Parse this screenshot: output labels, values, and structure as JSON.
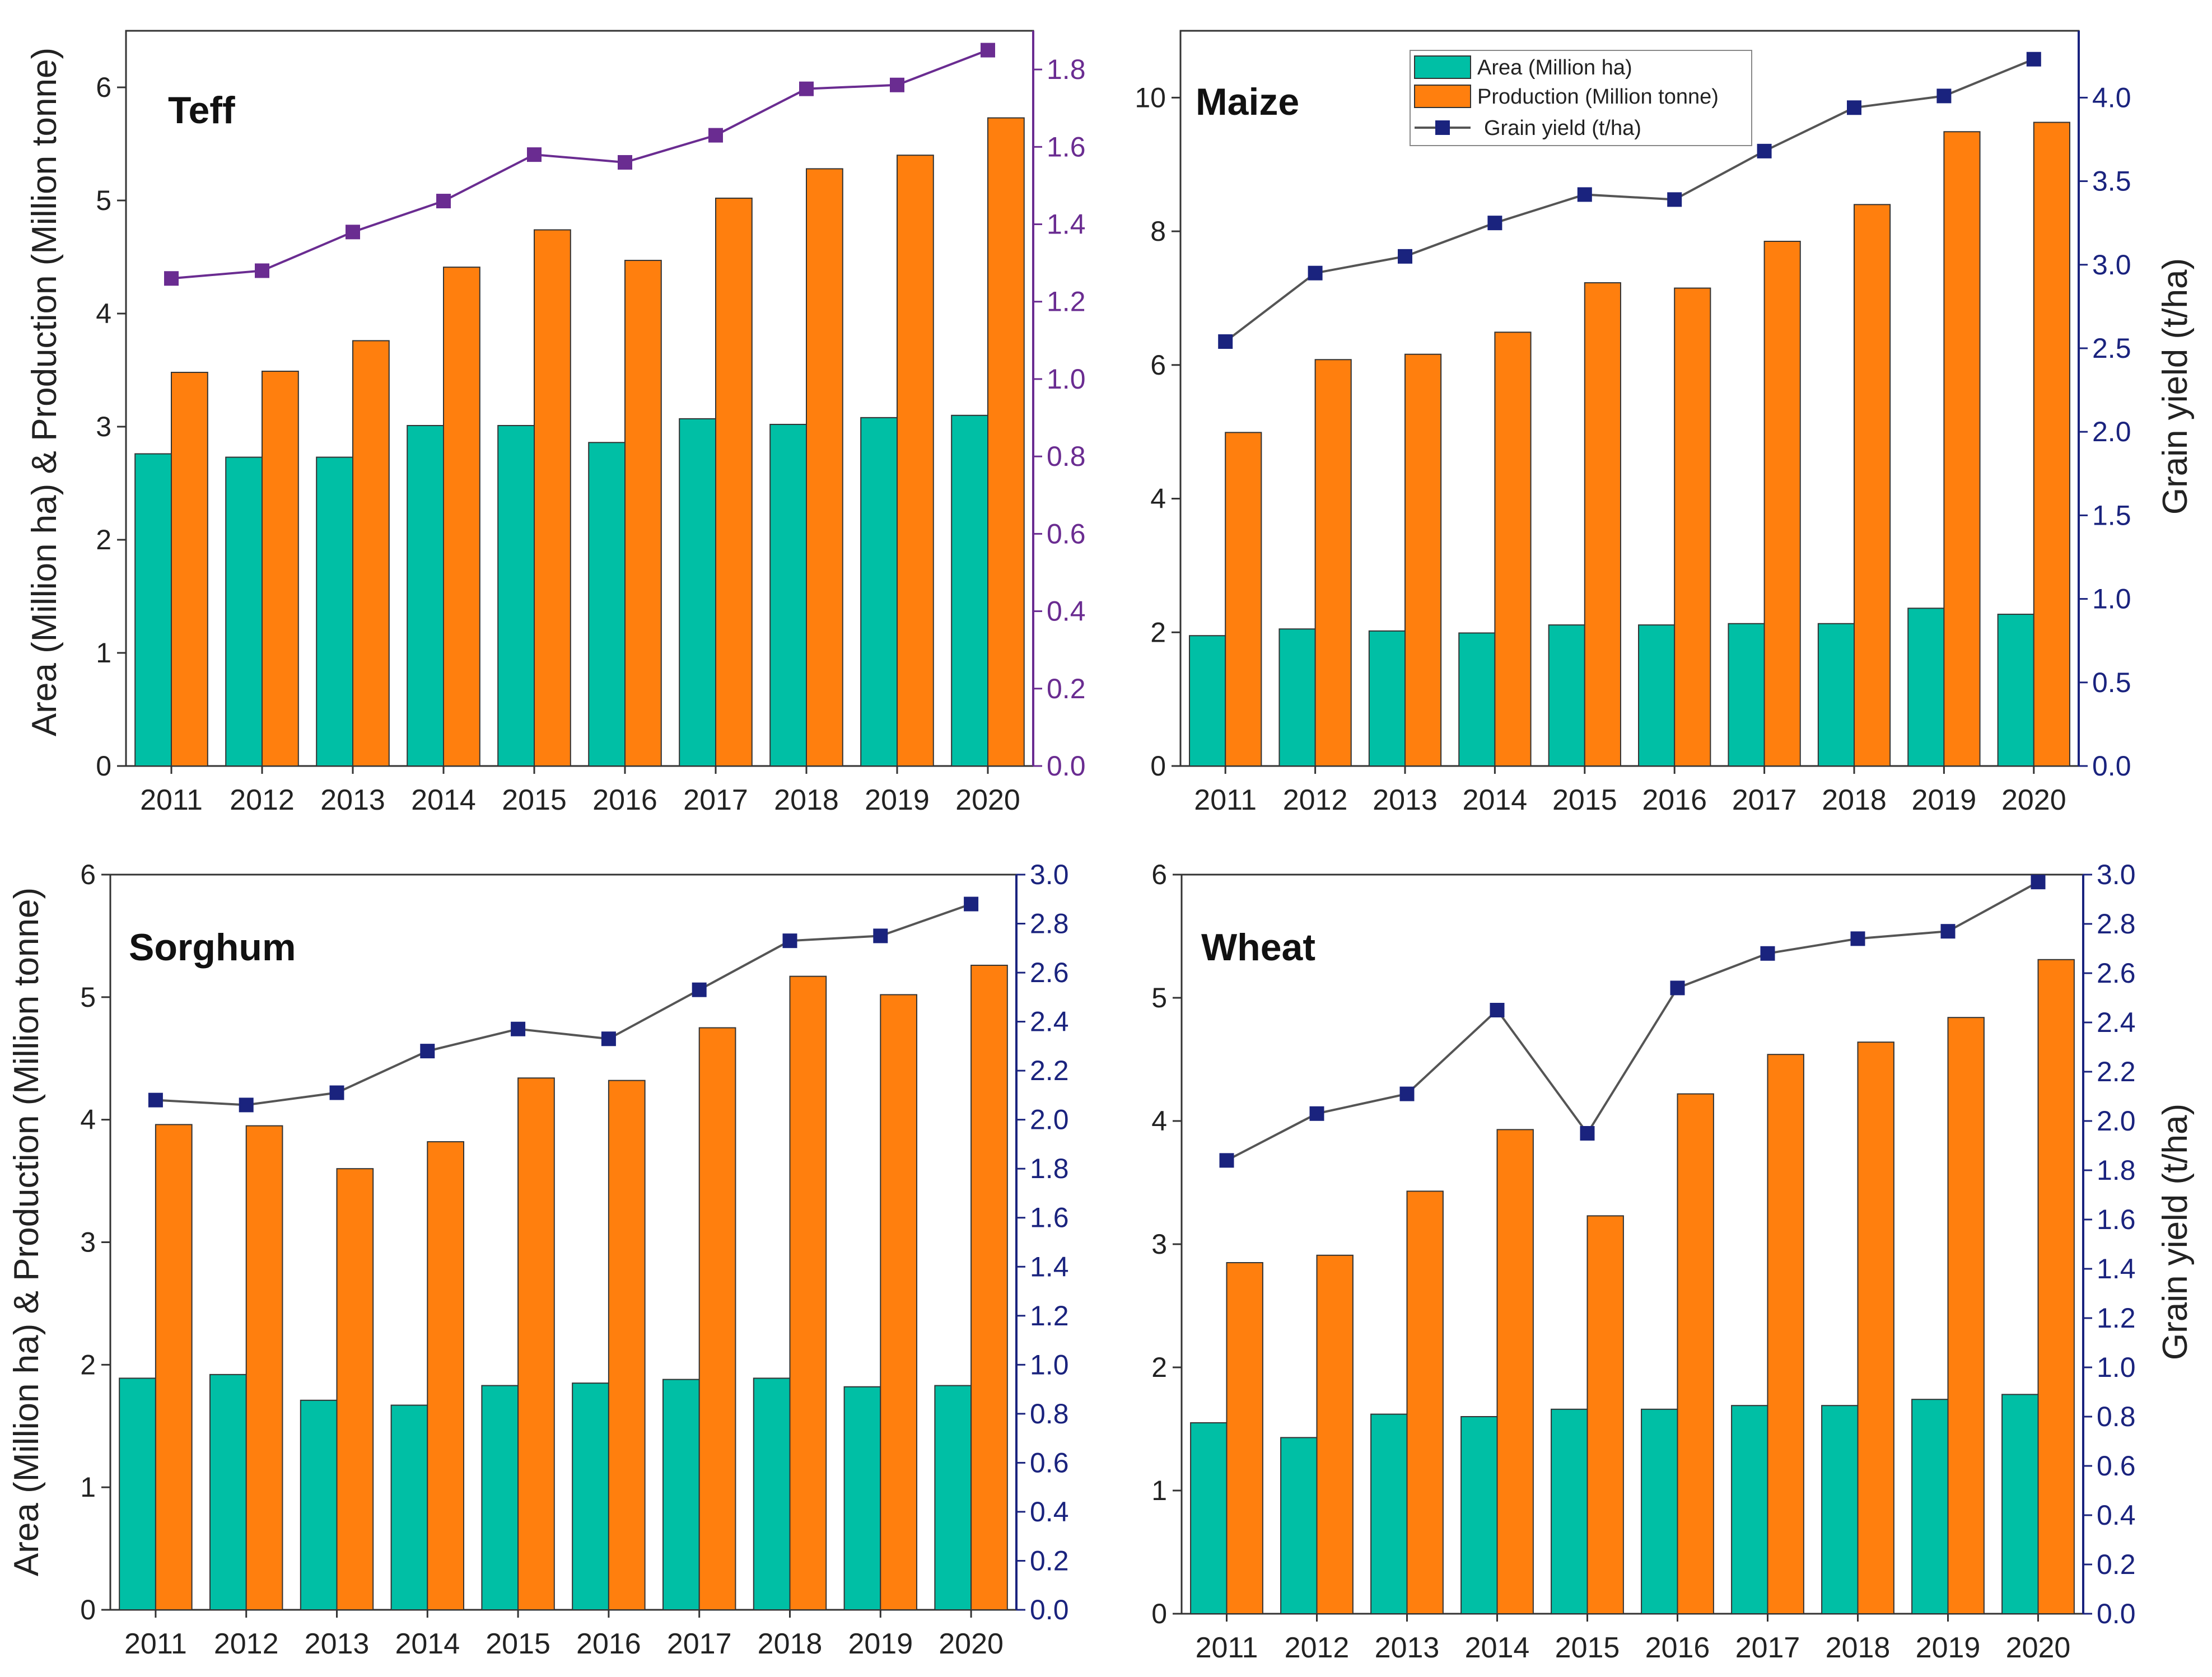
{
  "figure": {
    "left_axis_title": "Area (Million ha) & Production (Million tonne)",
    "right_axis_title": "Grain yield (t/ha)"
  },
  "legend": {
    "area": "Area (Million ha)",
    "production": "Production (Million tonne)",
    "yield": "Grain yield (t/ha)"
  },
  "colors": {
    "area": "#00bfa5",
    "production": "#ff7f0e",
    "teff_yield": "#6a2c91",
    "yield_line": "#555555",
    "yield_marker": "#1a237e",
    "right_axis_navy": "#1a237e"
  },
  "chart_data": [
    {
      "type": "bar",
      "title": "Teff",
      "categories": [
        "2011",
        "2012",
        "2013",
        "2014",
        "2015",
        "2016",
        "2017",
        "2018",
        "2019",
        "2020"
      ],
      "series": [
        {
          "name": "Area (Million ha)",
          "values": [
            2.76,
            2.73,
            2.73,
            3.01,
            3.01,
            2.86,
            3.07,
            3.02,
            3.08,
            3.1
          ]
        },
        {
          "name": "Production (Million tonne)",
          "values": [
            3.48,
            3.49,
            3.76,
            4.41,
            4.74,
            4.47,
            5.02,
            5.28,
            5.4,
            5.73
          ]
        },
        {
          "name": "Grain yield (t/ha)",
          "axis": "right",
          "values": [
            1.26,
            1.28,
            1.38,
            1.46,
            1.58,
            1.56,
            1.63,
            1.75,
            1.76,
            1.85
          ]
        }
      ],
      "ylim_left": [
        0,
        6.5
      ],
      "yticks_left": [
        "0",
        "1",
        "2",
        "3",
        "4",
        "5",
        "6"
      ],
      "ylim_right": [
        0,
        1.9
      ],
      "yticks_right": [
        "0.0",
        "0.2",
        "0.4",
        "0.6",
        "0.8",
        "1.0",
        "1.2",
        "1.4",
        "1.6",
        "1.8"
      ],
      "right_axis_color": "purple"
    },
    {
      "type": "bar",
      "title": "Maize",
      "categories": [
        "2011",
        "2012",
        "2013",
        "2014",
        "2015",
        "2016",
        "2017",
        "2018",
        "2019",
        "2020"
      ],
      "series": [
        {
          "name": "Area (Million ha)",
          "values": [
            1.95,
            2.05,
            2.02,
            1.99,
            2.11,
            2.11,
            2.13,
            2.13,
            2.36,
            2.27
          ]
        },
        {
          "name": "Production (Million tonne)",
          "values": [
            4.99,
            6.08,
            6.16,
            6.49,
            7.23,
            7.15,
            7.85,
            8.4,
            9.49,
            9.63
          ]
        },
        {
          "name": "Grain yield (t/ha)",
          "axis": "right",
          "values": [
            2.54,
            2.95,
            3.05,
            3.25,
            3.42,
            3.39,
            3.68,
            3.94,
            4.01,
            4.23
          ]
        }
      ],
      "ylim_left": [
        0,
        11
      ],
      "yticks_left": [
        "0",
        "2",
        "4",
        "6",
        "8",
        "10"
      ],
      "ylim_right": [
        0,
        4.4
      ],
      "yticks_right": [
        "0.0",
        "0.5",
        "1.0",
        "1.5",
        "2.0",
        "2.5",
        "3.0",
        "3.5",
        "4.0"
      ],
      "right_axis_color": "navy"
    },
    {
      "type": "bar",
      "title": "Sorghum",
      "categories": [
        "2011",
        "2012",
        "2013",
        "2014",
        "2015",
        "2016",
        "2017",
        "2018",
        "2019",
        "2020"
      ],
      "series": [
        {
          "name": "Area (Million ha)",
          "values": [
            1.89,
            1.92,
            1.71,
            1.67,
            1.83,
            1.85,
            1.88,
            1.89,
            1.82,
            1.83
          ]
        },
        {
          "name": "Production (Million tonne)",
          "values": [
            3.96,
            3.95,
            3.6,
            3.82,
            4.34,
            4.32,
            4.75,
            5.17,
            5.02,
            5.26
          ]
        },
        {
          "name": "Grain yield (t/ha)",
          "axis": "right",
          "values": [
            2.08,
            2.06,
            2.11,
            2.28,
            2.37,
            2.33,
            2.53,
            2.73,
            2.75,
            2.88
          ]
        }
      ],
      "ylim_left": [
        0,
        6
      ],
      "yticks_left": [
        "0",
        "1",
        "2",
        "3",
        "4",
        "5",
        "6"
      ],
      "ylim_right": [
        0,
        3.0
      ],
      "yticks_right": [
        "0.0",
        "0.2",
        "0.4",
        "0.6",
        "0.8",
        "1.0",
        "1.2",
        "1.4",
        "1.6",
        "1.8",
        "2.0",
        "2.2",
        "2.4",
        "2.6",
        "2.8",
        "3.0"
      ],
      "right_axis_color": "navy"
    },
    {
      "type": "bar",
      "title": "Wheat",
      "categories": [
        "2011",
        "2012",
        "2013",
        "2014",
        "2015",
        "2016",
        "2017",
        "2018",
        "2019",
        "2020"
      ],
      "series": [
        {
          "name": "Area (Million ha)",
          "values": [
            1.55,
            1.43,
            1.62,
            1.6,
            1.66,
            1.66,
            1.69,
            1.69,
            1.74,
            1.78
          ]
        },
        {
          "name": "Production (Million tonne)",
          "values": [
            2.85,
            2.91,
            3.43,
            3.93,
            3.23,
            4.22,
            4.54,
            4.64,
            4.84,
            5.31
          ]
        },
        {
          "name": "Grain yield (t/ha)",
          "axis": "right",
          "values": [
            1.84,
            2.03,
            2.11,
            2.45,
            1.95,
            2.54,
            2.68,
            2.74,
            2.77,
            2.97
          ]
        }
      ],
      "ylim_left": [
        0,
        6
      ],
      "yticks_left": [
        "0",
        "1",
        "2",
        "3",
        "4",
        "5",
        "6"
      ],
      "ylim_right": [
        0,
        3.0
      ],
      "yticks_right": [
        "0.0",
        "0.2",
        "0.4",
        "0.6",
        "0.8",
        "1.0",
        "1.2",
        "1.4",
        "1.6",
        "1.8",
        "2.0",
        "2.2",
        "2.4",
        "2.6",
        "2.8",
        "3.0"
      ],
      "right_axis_color": "navy"
    }
  ]
}
